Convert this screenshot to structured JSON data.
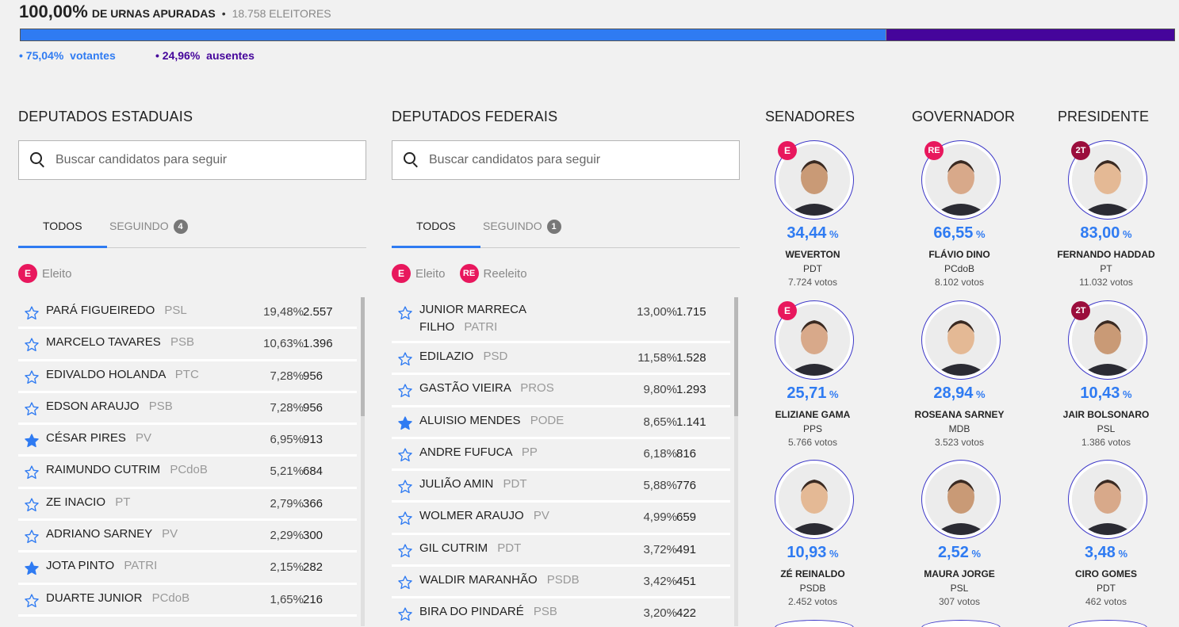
{
  "header": {
    "percent": "100,00%",
    "urnas_label": "DE URNAS APURADAS",
    "separator": "•",
    "eleitores": "18.758  ELEITORES",
    "votantes_pct": "• 75,04%",
    "votantes_label": "votantes",
    "ausentes_pct": "• 24,96%",
    "ausentes_label": "ausentes",
    "votantes_fraction": 0.7504,
    "colors": {
      "votantes": "#2f7bf2",
      "ausentes": "#45059b"
    }
  },
  "estaduais": {
    "title": "DEPUTADOS ESTADUAIS",
    "search_placeholder": "Buscar candidatos para seguir",
    "tab_all": "TODOS",
    "tab_following": "SEGUINDO",
    "following_count": "4",
    "legend_e_tag": "E",
    "legend_e_label": "Eleito",
    "rows": [
      {
        "name": "PARÁ FIGUEIREDO",
        "party": "PSL",
        "pct": "19,48%",
        "votes": "2.557",
        "followed": false
      },
      {
        "name": "MARCELO TAVARES",
        "party": "PSB",
        "pct": "10,63%",
        "votes": "1.396",
        "followed": false
      },
      {
        "name": "EDIVALDO HOLANDA",
        "party": "PTC",
        "pct": "7,28%",
        "votes": "956",
        "followed": false
      },
      {
        "name": "EDSON ARAUJO",
        "party": "PSB",
        "pct": "7,28%",
        "votes": "956",
        "followed": false
      },
      {
        "name": "CÉSAR PIRES",
        "party": "PV",
        "pct": "6,95%",
        "votes": "913",
        "followed": true
      },
      {
        "name": "RAIMUNDO CUTRIM",
        "party": "PCdoB",
        "pct": "5,21%",
        "votes": "684",
        "followed": false
      },
      {
        "name": "ZE INACIO",
        "party": "PT",
        "pct": "2,79%",
        "votes": "366",
        "followed": false
      },
      {
        "name": "ADRIANO SARNEY",
        "party": "PV",
        "pct": "2,29%",
        "votes": "300",
        "followed": false
      },
      {
        "name": "JOTA PINTO",
        "party": "PATRI",
        "pct": "2,15%",
        "votes": "282",
        "followed": true
      },
      {
        "name": "DUARTE JUNIOR",
        "party": "PCdoB",
        "pct": "1,65%",
        "votes": "216",
        "followed": false
      }
    ]
  },
  "federais": {
    "title": "DEPUTADOS FEDERAIS",
    "search_placeholder": "Buscar candidatos para seguir",
    "tab_all": "TODOS",
    "tab_following": "SEGUINDO",
    "following_count": "1",
    "legend_e_tag": "E",
    "legend_e_label": "Eleito",
    "legend_re_tag": "RE",
    "legend_re_label": "Reeleito",
    "rows": [
      {
        "name": "JUNIOR MARRECA FILHO",
        "party": "PATRI",
        "pct": "13,00%",
        "votes": "1.715",
        "followed": false
      },
      {
        "name": "EDILAZIO",
        "party": "PSD",
        "pct": "11,58%",
        "votes": "1.528",
        "followed": false
      },
      {
        "name": "GASTÃO VIEIRA",
        "party": "PROS",
        "pct": "9,80%",
        "votes": "1.293",
        "followed": false
      },
      {
        "name": "ALUISIO MENDES",
        "party": "PODE",
        "pct": "8,65%",
        "votes": "1.141",
        "followed": true
      },
      {
        "name": "ANDRE FUFUCA",
        "party": "PP",
        "pct": "6,18%",
        "votes": "816",
        "followed": false
      },
      {
        "name": "JULIÃO AMIN",
        "party": "PDT",
        "pct": "5,88%",
        "votes": "776",
        "followed": false
      },
      {
        "name": "WOLMER ARAUJO",
        "party": "PV",
        "pct": "4,99%",
        "votes": "659",
        "followed": false
      },
      {
        "name": "GIL CUTRIM",
        "party": "PDT",
        "pct": "3,72%",
        "votes": "491",
        "followed": false
      },
      {
        "name": "WALDIR MARANHÃO",
        "party": "PSDB",
        "pct": "3,42%",
        "votes": "451",
        "followed": false
      },
      {
        "name": "BIRA DO PINDARÉ",
        "party": "PSB",
        "pct": "3,20%",
        "votes": "422",
        "followed": false
      }
    ]
  },
  "majors": [
    {
      "title": "SENADORES",
      "candidates": [
        {
          "pct": "34,44",
          "sym": "%",
          "name": "WEVERTON",
          "party": "PDT",
          "votes": "7.724  votos",
          "tag": "E"
        },
        {
          "pct": "25,71",
          "sym": "%",
          "name": "ELIZIANE GAMA",
          "party": "PPS",
          "votes": "5.766  votos",
          "tag": "E"
        },
        {
          "pct": "10,93",
          "sym": "%",
          "name": "ZÉ REINALDO",
          "party": "PSDB",
          "votes": "2.452  votos",
          "tag": ""
        }
      ]
    },
    {
      "title": "GOVERNADOR",
      "candidates": [
        {
          "pct": "66,55",
          "sym": "%",
          "name": "FLÁVIO DINO",
          "party": "PCdoB",
          "votes": "8.102  votos",
          "tag": "RE"
        },
        {
          "pct": "28,94",
          "sym": "%",
          "name": "ROSEANA SARNEY",
          "party": "MDB",
          "votes": "3.523  votos",
          "tag": ""
        },
        {
          "pct": "2,52",
          "sym": "%",
          "name": "MAURA JORGE",
          "party": "PSL",
          "votes": "307  votos",
          "tag": ""
        }
      ]
    },
    {
      "title": "PRESIDENTE",
      "candidates": [
        {
          "pct": "83,00",
          "sym": "%",
          "name": "FERNANDO HADDAD",
          "party": "PT",
          "votes": "11.032  votos",
          "tag": "2T"
        },
        {
          "pct": "10,43",
          "sym": "%",
          "name": "JAIR BOLSONARO",
          "party": "PSL",
          "votes": "1.386  votos",
          "tag": "2T"
        },
        {
          "pct": "3,48",
          "sym": "%",
          "name": "CIRO GOMES",
          "party": "PDT",
          "votes": "462  votos",
          "tag": ""
        }
      ]
    }
  ]
}
